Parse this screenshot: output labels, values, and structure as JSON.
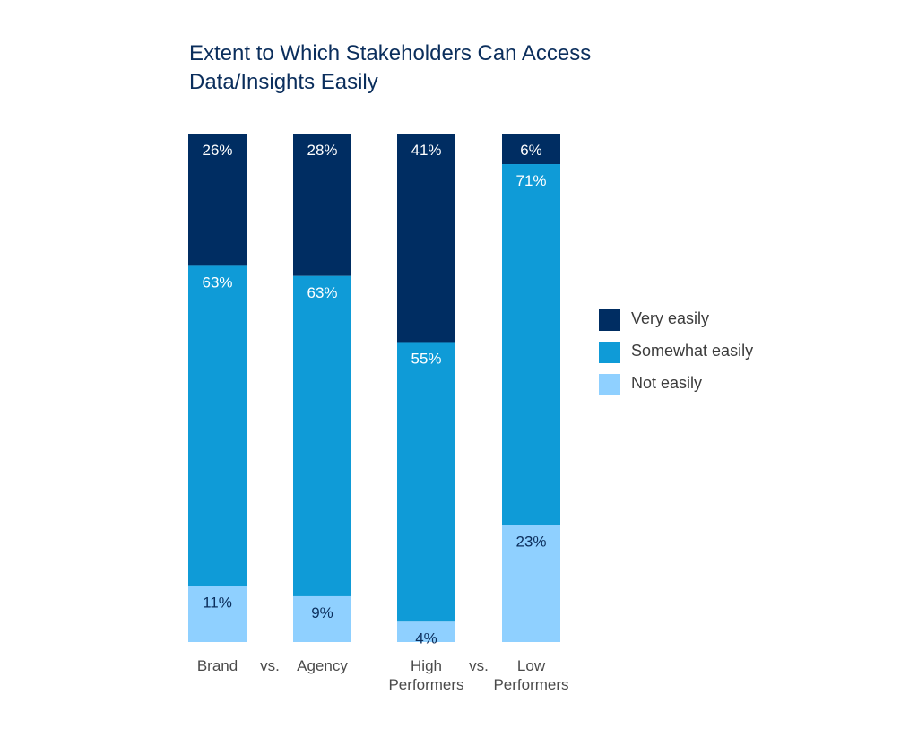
{
  "chart_data": {
    "type": "bar",
    "stacked": true,
    "orientation": "vertical",
    "title_lines": [
      "Extent to Which Stakeholders Can Access",
      "Data/Insights Easily"
    ],
    "categories": [
      "Brand",
      "Agency",
      "High Performers",
      "Low Performers"
    ],
    "category_label_lines": [
      [
        "Brand"
      ],
      [
        "Agency"
      ],
      [
        "High",
        "Performers"
      ],
      [
        "Low",
        "Performers"
      ]
    ],
    "separators": [
      "vs.",
      "vs."
    ],
    "series": [
      {
        "name": "Very easily",
        "color": "#002d62",
        "label_color": "#ffffff",
        "values": [
          26,
          28,
          41,
          6
        ]
      },
      {
        "name": "Somewhat easily",
        "color": "#0f9bd7",
        "label_color": "#ffffff",
        "values": [
          63,
          63,
          55,
          71
        ]
      },
      {
        "name": "Not easily",
        "color": "#8fd0ff",
        "label_color": "#0b2e5c",
        "values": [
          11,
          9,
          4,
          23
        ]
      }
    ],
    "value_suffix": "%",
    "ylim": [
      0,
      100
    ],
    "legend_position": "right",
    "grid": false
  }
}
